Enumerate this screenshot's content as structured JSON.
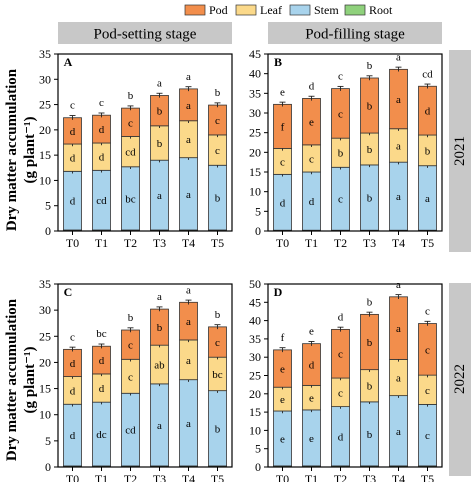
{
  "legend": [
    {
      "name": "Pod",
      "color": "#f28e4c"
    },
    {
      "name": "Leaf",
      "color": "#fbd98a"
    },
    {
      "name": "Stem",
      "color": "#a8d3ec"
    },
    {
      "name": "Root",
      "color": "#8fd17c"
    }
  ],
  "y_axis_label_line1": "Dry matter accumulation",
  "y_axis_label_line2": "(g plant⁻¹)",
  "stage_headers": [
    "Pod-setting stage",
    "Pod-filling stage"
  ],
  "year_labels": [
    "2021",
    "2022"
  ],
  "chart_data": [
    {
      "type": "bar",
      "stacked": true,
      "panel": "A",
      "categories": [
        "T0",
        "T1",
        "T2",
        "T3",
        "T4",
        "T5"
      ],
      "ylim": [
        0,
        35
      ],
      "yticks": [
        0,
        5,
        10,
        15,
        20,
        25,
        30,
        35
      ],
      "series": [
        {
          "name": "Root",
          "values": [
            0.2,
            0.2,
            0.2,
            0.2,
            0.2,
            0.2
          ],
          "letters": [
            "",
            "",
            "",
            "",
            "",
            ""
          ]
        },
        {
          "name": "Stem",
          "values": [
            11.6,
            11.8,
            12.5,
            13.8,
            14.3,
            12.8
          ],
          "letters": [
            "d",
            "cd",
            "bc",
            "a",
            "a",
            "b"
          ]
        },
        {
          "name": "Leaf",
          "values": [
            5.4,
            5.4,
            6.0,
            6.8,
            7.3,
            6.0
          ],
          "letters": [
            "d",
            "d",
            "cd",
            "b",
            "a",
            "c"
          ]
        },
        {
          "name": "Pod",
          "values": [
            5.2,
            5.5,
            5.6,
            6.0,
            6.3,
            5.9
          ],
          "letters": [
            "d",
            "d",
            "c",
            "b",
            "a",
            "c"
          ]
        }
      ],
      "totals": [
        22.4,
        22.9,
        24.3,
        26.8,
        28.1,
        24.9
      ],
      "total_letters": [
        "c",
        "c",
        "b",
        "a",
        "a",
        "b"
      ]
    },
    {
      "type": "bar",
      "stacked": true,
      "panel": "B",
      "categories": [
        "T0",
        "T1",
        "T2",
        "T3",
        "T4",
        "T5"
      ],
      "ylim": [
        0,
        45
      ],
      "yticks": [
        0,
        5,
        10,
        15,
        20,
        25,
        30,
        35,
        40,
        45
      ],
      "series": [
        {
          "name": "Root",
          "values": [
            0.2,
            0.2,
            0.2,
            0.2,
            0.2,
            0.2
          ],
          "letters": [
            "",
            "",
            "",
            "",
            "",
            ""
          ]
        },
        {
          "name": "Stem",
          "values": [
            14.2,
            14.8,
            16.0,
            16.6,
            17.3,
            16.4
          ],
          "letters": [
            "d",
            "d",
            "c",
            "b",
            "a",
            "a"
          ]
        },
        {
          "name": "Leaf",
          "values": [
            6.6,
            6.9,
            7.4,
            8.1,
            8.5,
            7.8
          ],
          "letters": [
            "c",
            "c",
            "b",
            "b",
            "a",
            "b"
          ]
        },
        {
          "name": "Pod",
          "values": [
            11.2,
            11.8,
            12.6,
            14.0,
            15.1,
            12.4
          ],
          "letters": [
            "f",
            "e",
            "c",
            "b",
            "a",
            "d"
          ]
        }
      ],
      "totals": [
        32.2,
        33.7,
        36.2,
        38.9,
        41.1,
        36.8
      ],
      "total_letters": [
        "e",
        "d",
        "c",
        "b",
        "a",
        "cd"
      ]
    },
    {
      "type": "bar",
      "stacked": true,
      "panel": "C",
      "categories": [
        "T0",
        "T1",
        "T2",
        "T3",
        "T4",
        "T5"
      ],
      "ylim": [
        0,
        35
      ],
      "yticks": [
        0,
        5,
        10,
        15,
        20,
        25,
        30,
        35
      ],
      "series": [
        {
          "name": "Root",
          "values": [
            0.2,
            0.2,
            0.2,
            0.2,
            0.2,
            0.2
          ],
          "letters": [
            "",
            "",
            "",
            "",
            "",
            ""
          ]
        },
        {
          "name": "Stem",
          "values": [
            11.8,
            12.2,
            13.9,
            15.7,
            16.5,
            14.4
          ],
          "letters": [
            "d",
            "dc",
            "cd",
            "a",
            "a",
            "b"
          ]
        },
        {
          "name": "Leaf",
          "values": [
            5.3,
            5.4,
            6.5,
            7.4,
            7.6,
            6.4
          ],
          "letters": [
            "d",
            "d",
            "c",
            "ab",
            "a",
            "bc"
          ]
        },
        {
          "name": "Pod",
          "values": [
            5.2,
            5.3,
            5.6,
            6.9,
            7.2,
            5.8
          ],
          "letters": [
            "d",
            "d",
            "c",
            "b",
            "a",
            "c"
          ]
        }
      ],
      "totals": [
        22.5,
        23.1,
        26.2,
        30.2,
        31.5,
        26.8
      ],
      "total_letters": [
        "c",
        "bc",
        "b",
        "a",
        "a",
        "b"
      ]
    },
    {
      "type": "bar",
      "stacked": true,
      "panel": "D",
      "categories": [
        "T0",
        "T1",
        "T2",
        "T3",
        "T4",
        "T5"
      ],
      "ylim": [
        0,
        50
      ],
      "yticks": [
        0,
        5,
        10,
        15,
        20,
        25,
        30,
        35,
        40,
        45,
        50
      ],
      "series": [
        {
          "name": "Root",
          "values": [
            0.3,
            0.3,
            0.3,
            0.3,
            0.3,
            0.3
          ],
          "letters": [
            "",
            "",
            "",
            "",
            "",
            ""
          ]
        },
        {
          "name": "Stem",
          "values": [
            15.0,
            15.3,
            16.2,
            17.5,
            19.2,
            16.8
          ],
          "letters": [
            "e",
            "e",
            "d",
            "b",
            "a",
            "c"
          ]
        },
        {
          "name": "Leaf",
          "values": [
            6.5,
            6.7,
            7.8,
            8.8,
            9.9,
            8.0
          ],
          "letters": [
            "e",
            "e",
            "c",
            "b",
            "a",
            "c"
          ]
        },
        {
          "name": "Pod",
          "values": [
            10.2,
            11.4,
            13.3,
            15.1,
            17.1,
            14.1
          ],
          "letters": [
            "e",
            "d",
            "c",
            "b",
            "a",
            "c"
          ]
        }
      ],
      "totals": [
        32.0,
        33.7,
        37.6,
        41.7,
        46.5,
        39.2
      ],
      "total_letters": [
        "f",
        "e",
        "d",
        "b",
        "a",
        "c"
      ]
    }
  ]
}
